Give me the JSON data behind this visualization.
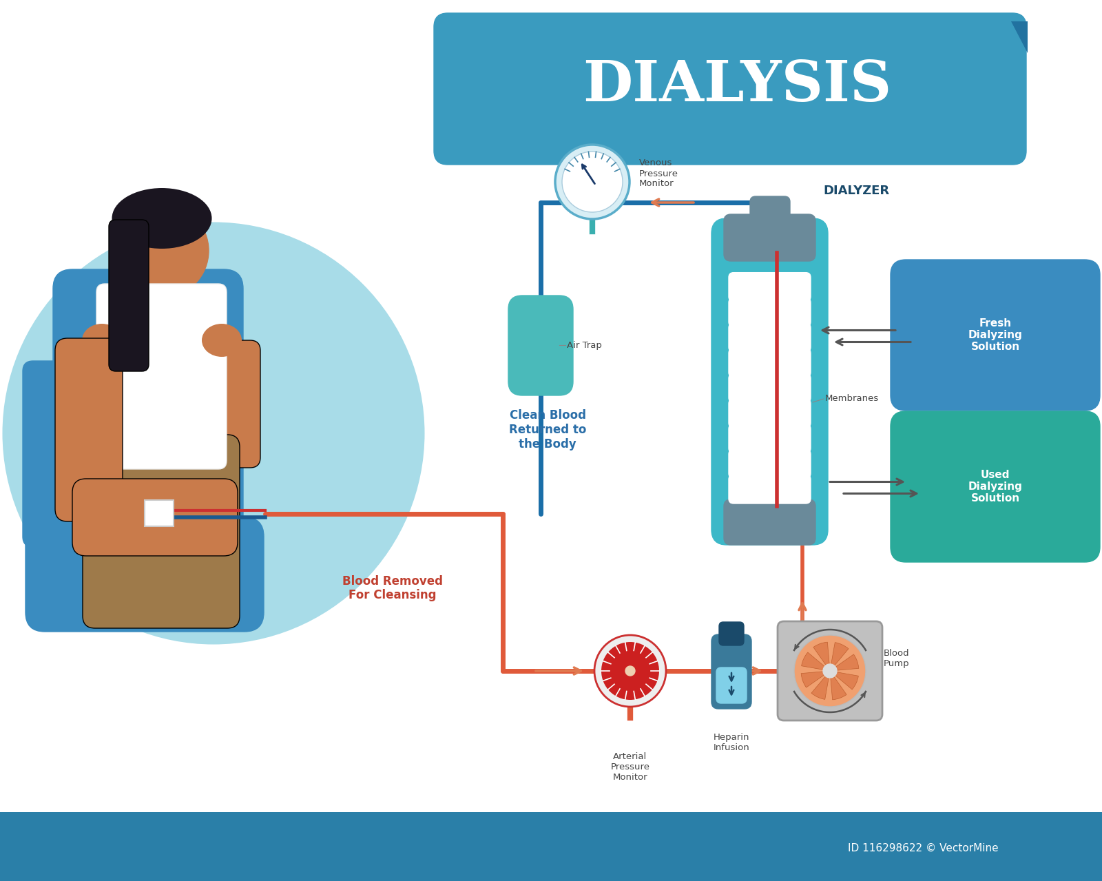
{
  "title": "DIALYSIS",
  "title_color": "#FFFFFF",
  "title_bg_color": "#3A9BBF",
  "bg_color": "#FFFFFF",
  "footer_bg_color": "#2A7FA8",
  "footer_text": "ID 116298622 © VectorMine",
  "blood_color": "#E05A3A",
  "clean_blood_color": "#F4A47A",
  "dialyzer_bg": "#3DB8C8",
  "blue_line_color": "#1A6EA8",
  "teal_color": "#3AAFAF",
  "orange_arrow_color": "#E07A50",
  "labels": {
    "venous_pressure": "Venous\nPressure\nMonitor",
    "air_trap": "Air Trap",
    "clean_blood": "Clean Blood\nReturned to\nthe Body",
    "dialyzer": "DIALYZER",
    "fresh_solution": "Fresh\nDialyzing\nSolution",
    "membranes": "Membranes",
    "used_solution": "Used\nDialyzing\nSolution",
    "blood_removed": "Blood Removed\nFor Cleansing",
    "arterial_pressure": "Arterial\nPressure\nMonitor",
    "heparin": "Heparin\nInfusion",
    "blood_pump": "Blood\nPump"
  },
  "label_colors": {
    "clean_blood": "#2A6EA8",
    "blood_removed": "#C04030",
    "dialyzer": "#1A4A6A",
    "default": "#444444"
  }
}
